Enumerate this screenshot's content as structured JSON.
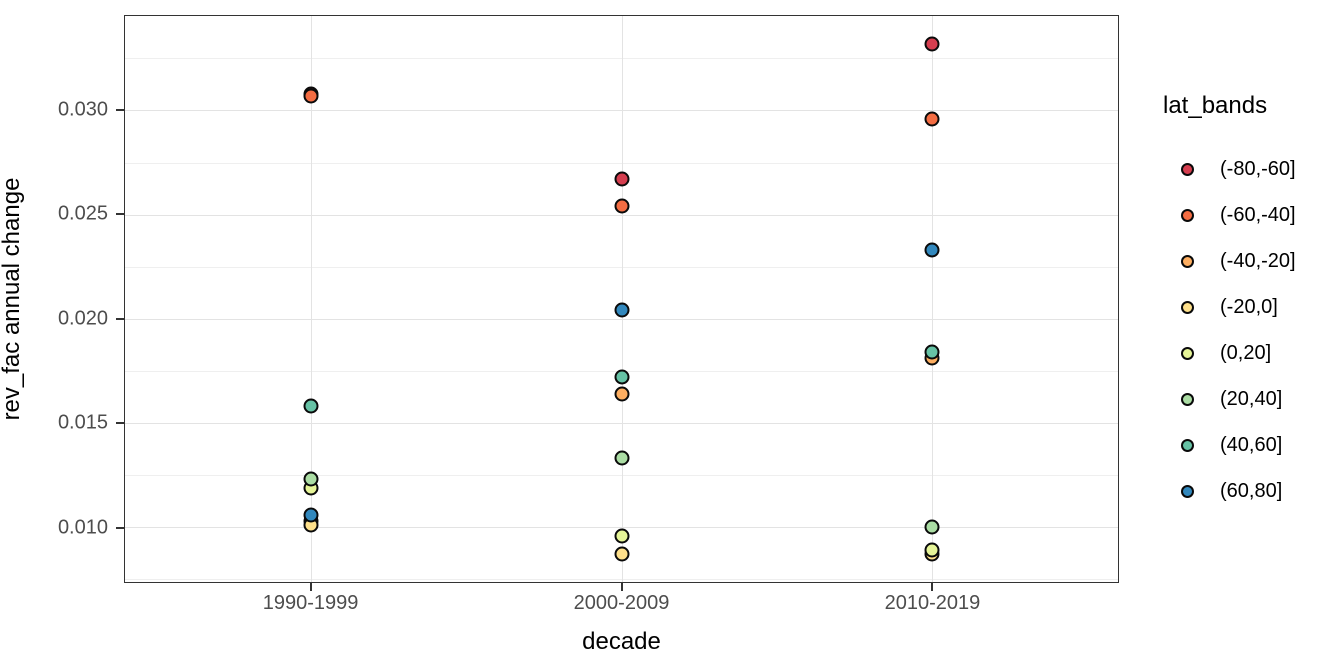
{
  "chart_data": {
    "type": "scatter",
    "title": "",
    "xlabel": "decade",
    "ylabel": "rev_fac annual change",
    "categories": [
      "1990-1999",
      "2000-2009",
      "2010-2019"
    ],
    "category_positions_pct": [
      18.75,
      50,
      81.25
    ],
    "ylim": [
      0.00737,
      0.03453
    ],
    "yticks": [
      0.01,
      0.015,
      0.02,
      0.025,
      0.03
    ],
    "ytick_labels": [
      "0.010",
      "0.015",
      "0.020",
      "0.025",
      "0.030"
    ],
    "yminor_ticks": [
      0.0075,
      0.0125,
      0.0175,
      0.0225,
      0.0275,
      0.0325
    ],
    "grid": "major-xy + minor-y",
    "legend_title": "lat_bands",
    "legend_position": "right",
    "series": [
      {
        "name": "(-80,-60]",
        "color": "#D53E4F",
        "values": [
          0.0308,
          0.0267,
          0.0332
        ]
      },
      {
        "name": "(-60,-40]",
        "color": "#F46D43",
        "values": [
          0.0307,
          0.0254,
          0.0296
        ]
      },
      {
        "name": "(-40,-20]",
        "color": "#FDAE61",
        "values": [
          0.0103,
          0.0164,
          0.0181
        ]
      },
      {
        "name": "(-20,0]",
        "color": "#FEE08B",
        "values": [
          0.0101,
          0.0087,
          0.0087
        ]
      },
      {
        "name": "(0,20]",
        "color": "#E6F598",
        "values": [
          0.0119,
          0.0096,
          0.0089
        ]
      },
      {
        "name": "(20,40]",
        "color": "#ABDDA4",
        "values": [
          0.0123,
          0.0133,
          0.01
        ]
      },
      {
        "name": "(40,60]",
        "color": "#66C2A5",
        "values": [
          0.0158,
          0.0172,
          0.0184
        ]
      },
      {
        "name": "(60,80]",
        "color": "#3288BD",
        "values": [
          0.0106,
          0.0204,
          0.0233
        ]
      }
    ]
  },
  "colors": {
    "background": "#FFFFFF",
    "panel_border": "#333333",
    "grid_major": "#E3E3E3",
    "grid_minor": "#EFEFEF",
    "tick_label": "#4D4D4D",
    "axis_title": "#000000",
    "point_stroke": "#0A0A0A"
  }
}
